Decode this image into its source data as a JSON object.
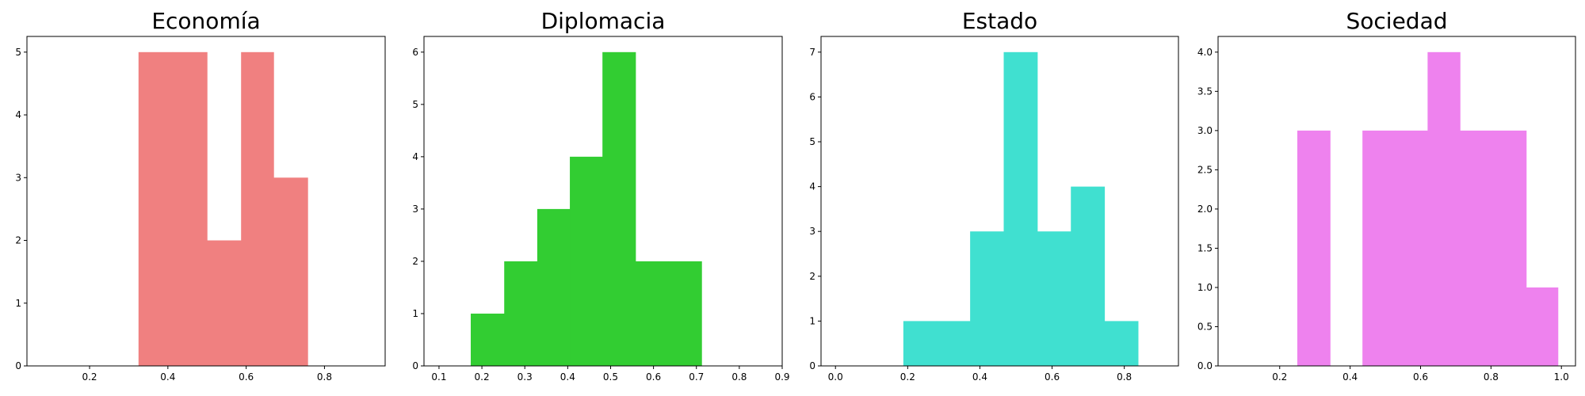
{
  "chart_data": [
    {
      "type": "bar",
      "title": "Economía",
      "color": "#f08080",
      "xlim": [
        0.04,
        0.955
      ],
      "ylim": [
        0,
        5.25
      ],
      "xticks": [
        "0.2",
        "0.4",
        "0.6",
        "0.8"
      ],
      "xtick_values": [
        0.2,
        0.4,
        0.6,
        0.8
      ],
      "yticks": [
        "0",
        "1",
        "2",
        "3",
        "4",
        "5"
      ],
      "ytick_values": [
        0,
        1,
        2,
        3,
        4,
        5
      ],
      "bins": [
        {
          "x0": 0.325,
          "x1": 0.412,
          "count": 5
        },
        {
          "x0": 0.412,
          "x1": 0.5,
          "count": 5
        },
        {
          "x0": 0.5,
          "x1": 0.587,
          "count": 2
        },
        {
          "x0": 0.587,
          "x1": 0.67,
          "count": 5
        },
        {
          "x0": 0.67,
          "x1": 0.757,
          "count": 3
        }
      ]
    },
    {
      "type": "bar",
      "title": "Diplomacia",
      "color": "#32cd32",
      "xlim": [
        0.065,
        0.9
      ],
      "ylim": [
        0,
        6.3
      ],
      "xticks": [
        "0.1",
        "0.2",
        "0.3",
        "0.4",
        "0.5",
        "0.6",
        "0.7",
        "0.8",
        "0.9"
      ],
      "xtick_values": [
        0.1,
        0.2,
        0.3,
        0.4,
        0.5,
        0.6,
        0.7,
        0.8,
        0.9
      ],
      "yticks": [
        "0",
        "1",
        "2",
        "3",
        "4",
        "5",
        "6"
      ],
      "ytick_values": [
        0,
        1,
        2,
        3,
        4,
        5,
        6
      ],
      "bins": [
        {
          "x0": 0.174,
          "x1": 0.252,
          "count": 1
        },
        {
          "x0": 0.252,
          "x1": 0.329,
          "count": 2
        },
        {
          "x0": 0.329,
          "x1": 0.405,
          "count": 3
        },
        {
          "x0": 0.405,
          "x1": 0.481,
          "count": 4
        },
        {
          "x0": 0.481,
          "x1": 0.558,
          "count": 6
        },
        {
          "x0": 0.558,
          "x1": 0.634,
          "count": 2
        },
        {
          "x0": 0.634,
          "x1": 0.712,
          "count": 2
        }
      ]
    },
    {
      "type": "bar",
      "title": "Estado",
      "color": "#40e0d0",
      "xlim": [
        -0.04,
        0.95
      ],
      "ylim": [
        0,
        7.35
      ],
      "xticks": [
        "0.0",
        "0.2",
        "0.4",
        "0.6",
        "0.8"
      ],
      "xtick_values": [
        0.0,
        0.2,
        0.4,
        0.6,
        0.8
      ],
      "yticks": [
        "0",
        "1",
        "2",
        "3",
        "4",
        "5",
        "6",
        "7"
      ],
      "ytick_values": [
        0,
        1,
        2,
        3,
        4,
        5,
        6,
        7
      ],
      "bins": [
        {
          "x0": 0.188,
          "x1": 0.28,
          "count": 1
        },
        {
          "x0": 0.28,
          "x1": 0.373,
          "count": 1
        },
        {
          "x0": 0.373,
          "x1": 0.466,
          "count": 3
        },
        {
          "x0": 0.466,
          "x1": 0.559,
          "count": 7
        },
        {
          "x0": 0.559,
          "x1": 0.652,
          "count": 3
        },
        {
          "x0": 0.652,
          "x1": 0.745,
          "count": 4
        },
        {
          "x0": 0.745,
          "x1": 0.838,
          "count": 1
        }
      ]
    },
    {
      "type": "bar",
      "title": "Sociedad",
      "color": "#ee82ee",
      "xlim": [
        0.025,
        1.04
      ],
      "ylim": [
        0,
        4.2
      ],
      "xticks": [
        "0.2",
        "0.4",
        "0.6",
        "0.8",
        "1.0"
      ],
      "xtick_values": [
        0.2,
        0.4,
        0.6,
        0.8,
        1.0
      ],
      "yticks": [
        "0.0",
        "0.5",
        "1.0",
        "1.5",
        "2.0",
        "2.5",
        "3.0",
        "3.5",
        "4.0"
      ],
      "ytick_values": [
        0.0,
        0.5,
        1.0,
        1.5,
        2.0,
        2.5,
        3.0,
        3.5,
        4.0
      ],
      "bins": [
        {
          "x0": 0.25,
          "x1": 0.343,
          "count": 3
        },
        {
          "x0": 0.435,
          "x1": 0.527,
          "count": 3
        },
        {
          "x0": 0.527,
          "x1": 0.62,
          "count": 3
        },
        {
          "x0": 0.62,
          "x1": 0.712,
          "count": 4
        },
        {
          "x0": 0.712,
          "x1": 0.805,
          "count": 3
        },
        {
          "x0": 0.805,
          "x1": 0.9,
          "count": 3
        },
        {
          "x0": 0.9,
          "x1": 0.99,
          "count": 1
        }
      ]
    }
  ]
}
